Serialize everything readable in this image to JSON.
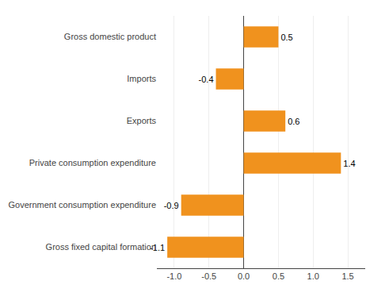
{
  "chart_data": {
    "type": "bar",
    "orientation": "horizontal",
    "categories": [
      "Gross fixed capital formation",
      "Government consumption expenditure",
      "Private consumption expenditure",
      "Exports",
      "Imports",
      "Gross domestic product"
    ],
    "values": [
      -1.1,
      -0.9,
      1.4,
      0.6,
      -0.4,
      0.5
    ],
    "color": "#F0921E",
    "xlim": [
      -1.25,
      1.75
    ],
    "xticks": [
      {
        "value": -1.0,
        "label": "-1.0"
      },
      -0.5,
      {
        "value": 0.0,
        "label": "0.0"
      },
      0.5,
      {
        "value": 1.0,
        "label": "1.0"
      },
      1.5
    ],
    "grid": true,
    "data_labels": true
  }
}
